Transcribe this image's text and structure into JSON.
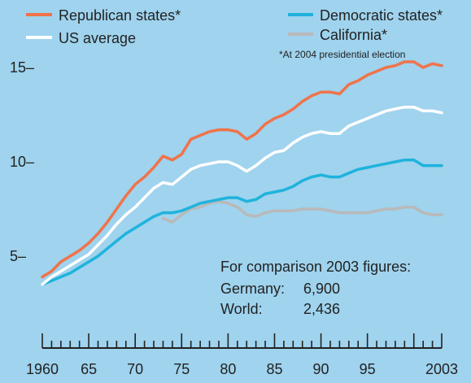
{
  "chart_data": {
    "type": "line",
    "legend": {
      "placement": "top",
      "entries": [
        {
          "label": "Republican states*",
          "color": "#f0734a"
        },
        {
          "label": "US average",
          "color": "#ffffff"
        },
        {
          "label": "Democratic states*",
          "color": "#1fb3dc"
        },
        {
          "label": "California*",
          "color": "#b9b9b9"
        }
      ],
      "footnote": "*At 2004 presidential election"
    },
    "y_ticks": [
      "15–",
      "10–",
      "5–"
    ],
    "y_tick_values": [
      15,
      10,
      5
    ],
    "x_ticks": [
      "1960",
      "65",
      "70",
      "75",
      "80",
      "85",
      "90",
      "95",
      "2003"
    ],
    "x_tick_values": [
      1960,
      1965,
      1970,
      1975,
      1980,
      1985,
      1990,
      1995,
      2003
    ],
    "xlim": [
      1960,
      2003
    ],
    "ylim": [
      4,
      16
    ],
    "x": [
      1960,
      1961,
      1962,
      1963,
      1964,
      1965,
      1966,
      1967,
      1968,
      1969,
      1970,
      1971,
      1972,
      1973,
      1974,
      1975,
      1976,
      1977,
      1978,
      1979,
      1980,
      1981,
      1982,
      1983,
      1984,
      1985,
      1986,
      1987,
      1988,
      1989,
      1990,
      1991,
      1992,
      1993,
      1994,
      1995,
      1996,
      1997,
      1998,
      1999,
      2000,
      2001,
      2002,
      2003
    ],
    "series": [
      {
        "name": "Republican states*",
        "color": "#f0734a",
        "values": [
          3.9,
          4.2,
          4.7,
          5.0,
          5.3,
          5.7,
          6.2,
          6.8,
          7.5,
          8.2,
          8.8,
          9.2,
          9.7,
          10.3,
          10.1,
          10.4,
          11.2,
          11.4,
          11.6,
          11.7,
          11.7,
          11.6,
          11.2,
          11.5,
          12.0,
          12.3,
          12.5,
          12.8,
          13.2,
          13.5,
          13.7,
          13.7,
          13.6,
          14.1,
          14.3,
          14.6,
          14.8,
          15.0,
          15.1,
          15.3,
          15.3,
          15.0,
          15.2,
          15.1
        ]
      },
      {
        "name": "US average",
        "color": "#ffffff",
        "values": [
          3.5,
          3.9,
          4.2,
          4.5,
          4.8,
          5.1,
          5.6,
          6.1,
          6.7,
          7.2,
          7.6,
          8.1,
          8.6,
          8.9,
          8.8,
          9.2,
          9.6,
          9.8,
          9.9,
          10.0,
          10.0,
          9.8,
          9.5,
          9.8,
          10.2,
          10.5,
          10.6,
          11.0,
          11.3,
          11.5,
          11.6,
          11.5,
          11.5,
          11.9,
          12.1,
          12.3,
          12.5,
          12.7,
          12.8,
          12.9,
          12.9,
          12.7,
          12.7,
          12.6
        ]
      },
      {
        "name": "Democratic states*",
        "color": "#1fb3dc",
        "values": [
          3.5,
          3.7,
          3.9,
          4.1,
          4.4,
          4.7,
          5.0,
          5.4,
          5.8,
          6.2,
          6.5,
          6.8,
          7.1,
          7.3,
          7.3,
          7.4,
          7.6,
          7.8,
          7.9,
          8.0,
          8.1,
          8.1,
          7.9,
          8.0,
          8.3,
          8.4,
          8.5,
          8.7,
          9.0,
          9.2,
          9.3,
          9.2,
          9.2,
          9.4,
          9.6,
          9.7,
          9.8,
          9.9,
          10.0,
          10.1,
          10.1,
          9.8,
          9.8,
          9.8
        ]
      },
      {
        "name": "California*",
        "color": "#b9b9b9",
        "values": [
          null,
          null,
          null,
          null,
          null,
          null,
          null,
          null,
          null,
          null,
          null,
          null,
          null,
          7.0,
          6.8,
          7.2,
          7.5,
          7.6,
          7.8,
          7.9,
          7.8,
          7.6,
          7.2,
          7.1,
          7.3,
          7.4,
          7.4,
          7.4,
          7.5,
          7.5,
          7.5,
          7.4,
          7.3,
          7.3,
          7.3,
          7.3,
          7.4,
          7.5,
          7.5,
          7.6,
          7.6,
          7.3,
          7.2,
          7.2
        ]
      }
    ],
    "annotation": {
      "title": "For comparison 2003 figures:",
      "rows": [
        {
          "label": "Germany:",
          "value": "6,900"
        },
        {
          "label": "World:",
          "value": "2,436"
        }
      ]
    }
  }
}
